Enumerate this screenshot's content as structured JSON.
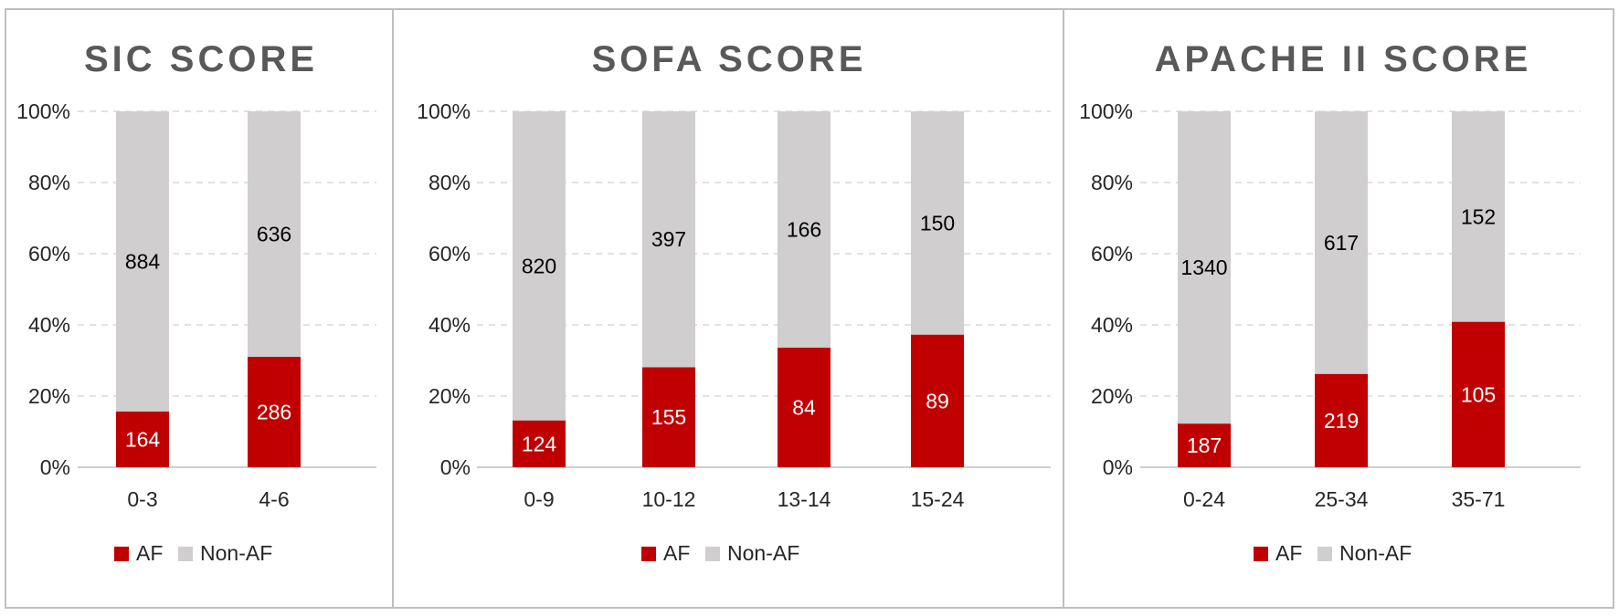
{
  "colors": {
    "af": "#C00000",
    "non_af": "#D0CECE",
    "grid": "#D9D9D9",
    "border": "#BFBFBF",
    "axis": "#BFBFBF"
  },
  "chart_data": [
    {
      "type": "bar",
      "stacked": "percent",
      "title": "SIC SCORE",
      "categories": [
        "0-3",
        "4-6"
      ],
      "series": [
        {
          "name": "AF",
          "values": [
            164,
            286
          ]
        },
        {
          "name": "Non-AF",
          "values": [
            884,
            636
          ]
        }
      ],
      "y_ticks": [
        "0%",
        "20%",
        "40%",
        "60%",
        "80%",
        "100%"
      ],
      "ylim": [
        0,
        100
      ],
      "legend": "bottom",
      "grid": true
    },
    {
      "type": "bar",
      "stacked": "percent",
      "title": "SOFA SCORE",
      "categories": [
        "0-9",
        "10-12",
        "13-14",
        "15-24"
      ],
      "series": [
        {
          "name": "AF",
          "values": [
            124,
            155,
            84,
            89
          ]
        },
        {
          "name": "Non-AF",
          "values": [
            820,
            397,
            166,
            150
          ]
        }
      ],
      "y_ticks": [
        "0%",
        "20%",
        "40%",
        "60%",
        "80%",
        "100%"
      ],
      "ylim": [
        0,
        100
      ],
      "legend": "bottom",
      "grid": true
    },
    {
      "type": "bar",
      "stacked": "percent",
      "title": "APACHE II SCORE",
      "categories": [
        "0-24",
        "25-34",
        "35-71"
      ],
      "series": [
        {
          "name": "AF",
          "values": [
            187,
            219,
            105
          ]
        },
        {
          "name": "Non-AF",
          "values": [
            1340,
            617,
            152
          ]
        }
      ],
      "y_ticks": [
        "0%",
        "20%",
        "40%",
        "60%",
        "80%",
        "100%"
      ],
      "ylim": [
        0,
        100
      ],
      "legend": "bottom",
      "grid": true
    }
  ]
}
